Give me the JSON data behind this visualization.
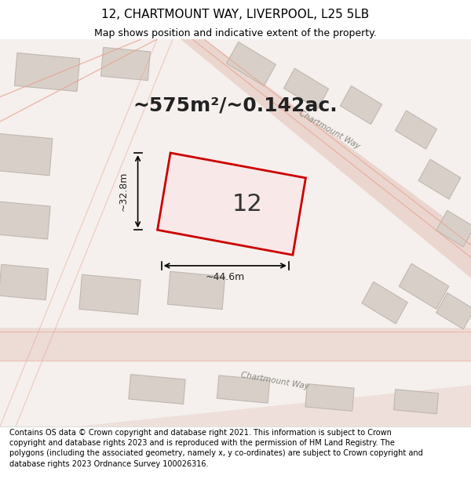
{
  "title": "12, CHARTMOUNT WAY, LIVERPOOL, L25 5LB",
  "subtitle": "Map shows position and indicative extent of the property.",
  "area_text": "~575m²/~0.142ac.",
  "property_number": "12",
  "width_label": "~44.6m",
  "height_label": "~32.8m",
  "footer_text": "Contains OS data © Crown copyright and database right 2021. This information is subject to Crown copyright and database rights 2023 and is reproduced with the permission of HM Land Registry. The polygons (including the associated geometry, namely x, y co-ordinates) are subject to Crown copyright and database rights 2023 Ordnance Survey 100026316.",
  "bg_color": "#f0ece8",
  "map_bg": "#f5f0ed",
  "road_color": "#e8d0c8",
  "property_fill": "#f8e8e8",
  "property_edge": "#cc0000",
  "building_fill": "#d8d0c8",
  "building_edge": "#c0b8b0",
  "road_line_color": "#e8a090",
  "title_fontsize": 11,
  "subtitle_fontsize": 9,
  "area_fontsize": 18,
  "number_fontsize": 22,
  "label_fontsize": 9,
  "footer_fontsize": 7
}
